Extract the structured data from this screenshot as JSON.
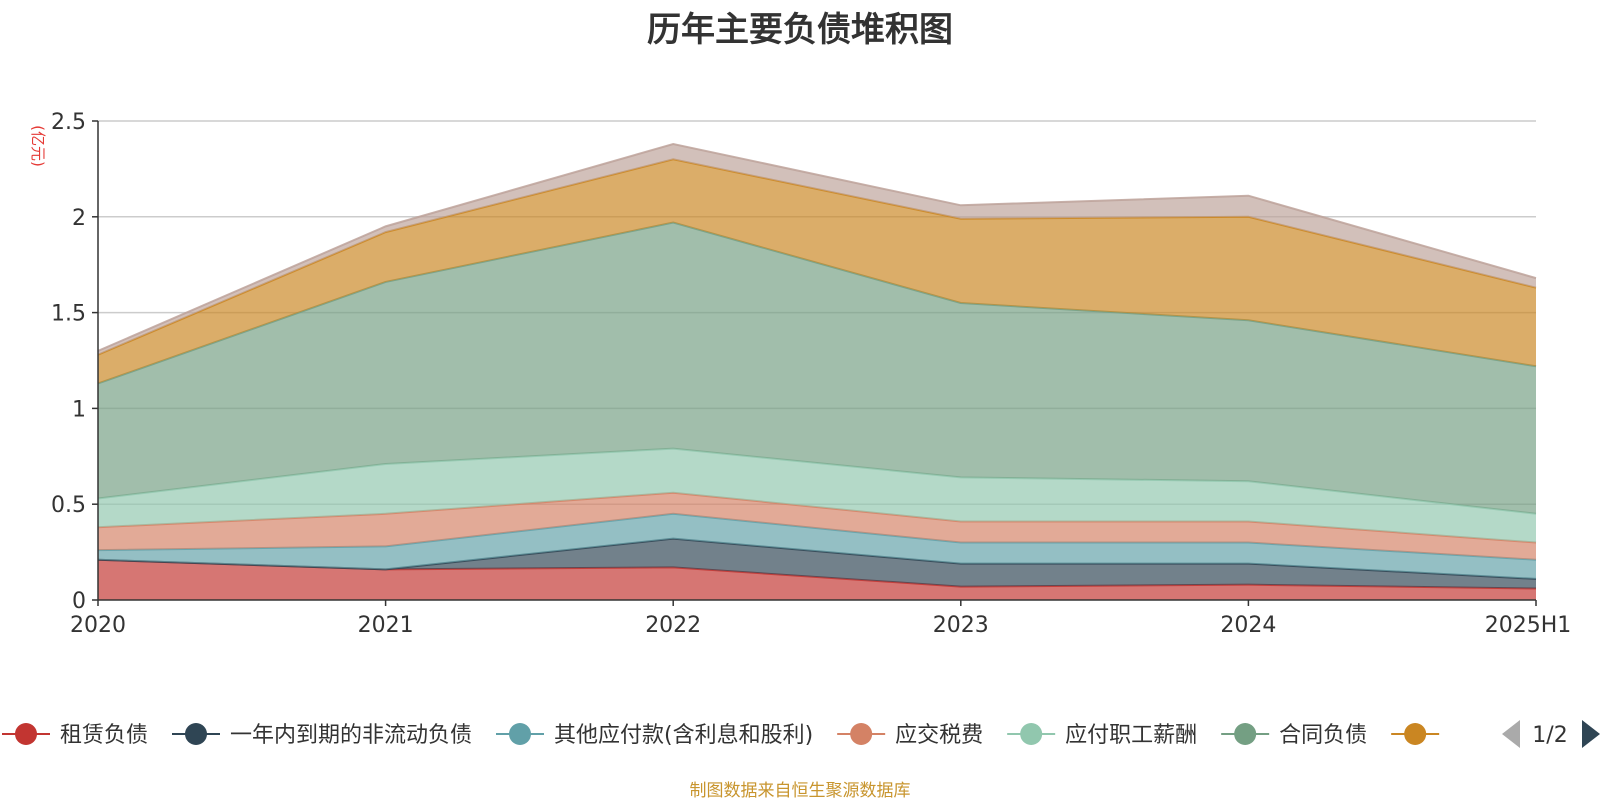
{
  "chart_data": {
    "type": "area",
    "stacked": true,
    "title": "历年主要负债堆积图",
    "unit_label": "(亿元)",
    "x": [
      "2020",
      "2021",
      "2022",
      "2023",
      "2024",
      "2025H1"
    ],
    "ylim": [
      0,
      2.5
    ],
    "yticks": [
      "0",
      "0.5",
      "1",
      "1.5",
      "2",
      "2.5"
    ],
    "ytick_values": [
      0,
      0.5,
      1,
      1.5,
      2,
      2.5
    ],
    "grid": true,
    "legend_position": "bottom",
    "series": [
      {
        "name": "租赁负债",
        "color": "#c23531",
        "values": [
          0.21,
          0.16,
          0.17,
          0.07,
          0.08,
          0.06
        ]
      },
      {
        "name": "一年内到期的非流动负债",
        "color": "#2f4554",
        "values": [
          0.0,
          0.0,
          0.15,
          0.12,
          0.11,
          0.05
        ]
      },
      {
        "name": "其他应付款(含利息和股利)",
        "color": "#61a0a8",
        "values": [
          0.05,
          0.12,
          0.13,
          0.11,
          0.11,
          0.1
        ]
      },
      {
        "name": "应交税费",
        "color": "#d48265",
        "values": [
          0.12,
          0.17,
          0.11,
          0.11,
          0.11,
          0.09
        ]
      },
      {
        "name": "应付职工薪酬",
        "color": "#91c7ae",
        "values": [
          0.15,
          0.26,
          0.23,
          0.23,
          0.21,
          0.15
        ]
      },
      {
        "name": "合同负债",
        "color": "#749f83",
        "values": [
          0.6,
          0.95,
          1.18,
          0.91,
          0.84,
          0.77
        ]
      },
      {
        "name": "",
        "color": "#ca8622",
        "values": [
          0.15,
          0.26,
          0.33,
          0.44,
          0.54,
          0.41
        ]
      },
      {
        "name": "",
        "color": "#bda29a",
        "values": [
          0.02,
          0.03,
          0.08,
          0.07,
          0.11,
          0.05
        ]
      }
    ]
  },
  "legend": {
    "page_indicator": "1/2"
  },
  "source_note": "制图数据来自恒生聚源数据库"
}
